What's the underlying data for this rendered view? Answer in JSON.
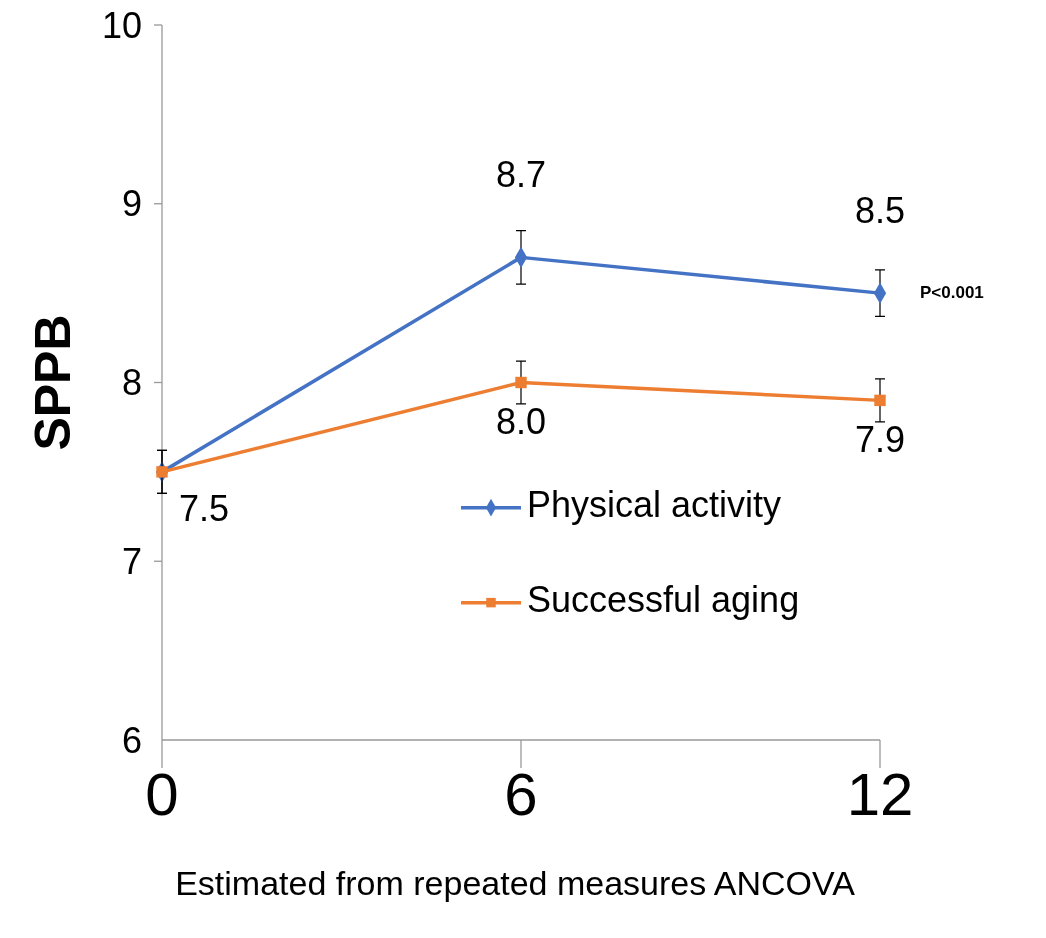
{
  "chart_data": {
    "type": "line",
    "ylabel": "SPPB",
    "x": [
      0,
      6,
      12
    ],
    "xlim": [
      0,
      12
    ],
    "xticks": [
      0,
      6,
      12
    ],
    "ylim": [
      6,
      10
    ],
    "yticks": [
      6,
      7,
      8,
      9,
      10
    ],
    "grid": false,
    "legend": "bottom right",
    "annotations": [
      {
        "text": "P<0.001",
        "x": 12,
        "y": 8.5
      },
      "Estimated from repeated measures ANCOVA"
    ],
    "series": [
      {
        "name": "Physical activity",
        "color": "#4472c4",
        "marker": "diamond",
        "values": [
          7.5,
          8.7,
          8.5
        ],
        "errors": [
          0.12,
          0.15,
          0.13
        ],
        "value_labels": [
          null,
          "8.7",
          "8.5"
        ]
      },
      {
        "name": "Successful aging",
        "color": "#ed7d31",
        "marker": "square",
        "values": [
          7.5,
          8.0,
          7.9
        ],
        "errors": [
          0.12,
          0.12,
          0.12
        ],
        "value_labels": [
          "7.5",
          "8.0",
          "7.9"
        ]
      }
    ]
  }
}
